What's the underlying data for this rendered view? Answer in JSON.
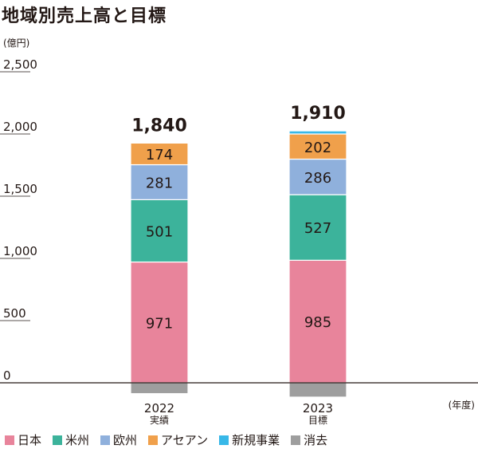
{
  "title": "地域別売上高と目標",
  "chart_data": {
    "type": "bar",
    "stacked": true,
    "title": "地域別売上高と目標",
    "ylabel": "(億円)",
    "xlabel": "(年度)",
    "ylim": [
      -100,
      2500
    ],
    "yticks": [
      0,
      500,
      1000,
      1500,
      2000,
      2500
    ],
    "ytick_labels": [
      "0",
      "500",
      "1,000",
      "1,500",
      "2,000",
      "2,500"
    ],
    "categories": [
      "2022",
      "2023"
    ],
    "category_sublabels": [
      "実績",
      "目標"
    ],
    "totals": [
      "1,840",
      "1,910"
    ],
    "legend_position": "bottom",
    "series": [
      {
        "name": "日本",
        "color": "#e8849b",
        "values": [
          971,
          985
        ],
        "labels": [
          "971",
          "985"
        ]
      },
      {
        "name": "米州",
        "color": "#3cb39b",
        "values": [
          501,
          527
        ],
        "labels": [
          "501",
          "527"
        ]
      },
      {
        "name": "欧州",
        "color": "#8fb0dc",
        "values": [
          281,
          286
        ],
        "labels": [
          "281",
          "286"
        ]
      },
      {
        "name": "アセアン",
        "color": "#f0a04b",
        "values": [
          174,
          202
        ],
        "labels": [
          "174",
          "202"
        ]
      },
      {
        "name": "新規事業",
        "color": "#38b8e8",
        "values": [
          0,
          25
        ],
        "labels": [
          "",
          ""
        ]
      },
      {
        "name": "消去",
        "color": "#9e9e9e",
        "values": [
          -87,
          -115
        ],
        "labels": [
          "",
          ""
        ]
      }
    ]
  }
}
